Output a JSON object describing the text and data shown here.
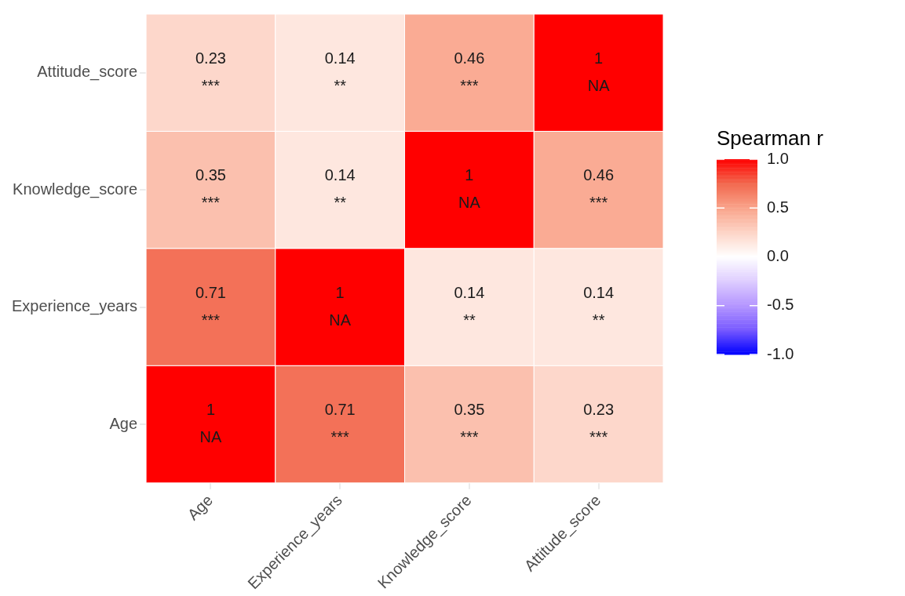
{
  "chart_data": {
    "type": "heatmap",
    "categories": [
      "Age",
      "Experience_years",
      "Knowledge_score",
      "Attitude_score"
    ],
    "y_categories": [
      "Attitude_score",
      "Knowledge_score",
      "Experience_years",
      "Age"
    ],
    "cells": [
      [
        0.23,
        0.14,
        0.46,
        1
      ],
      [
        0.35,
        0.14,
        1,
        0.46
      ],
      [
        0.71,
        1,
        0.14,
        0.14
      ],
      [
        1,
        0.71,
        0.35,
        0.23
      ]
    ],
    "cell_labels": [
      [
        "0.23\n***",
        "0.14\n**",
        "0.46\n***",
        "1\nNA"
      ],
      [
        "0.35\n***",
        "0.14\n**",
        "1\nNA",
        "0.46\n***"
      ],
      [
        "0.71\n***",
        "1\nNA",
        "0.14\n**",
        "0.14\n**"
      ],
      [
        "1\nNA",
        "0.71\n***",
        "0.35\n***",
        "0.23\n***"
      ]
    ],
    "clabel": "Spearman r",
    "clim": [
      -1,
      1
    ],
    "cticks": [
      {
        "value": 1,
        "label": "1.0"
      },
      {
        "value": 0.5,
        "label": "0.5"
      },
      {
        "value": 0,
        "label": "0.0"
      },
      {
        "value": -0.5,
        "label": "-0.5"
      },
      {
        "value": -1,
        "label": "-1.0"
      }
    ]
  }
}
